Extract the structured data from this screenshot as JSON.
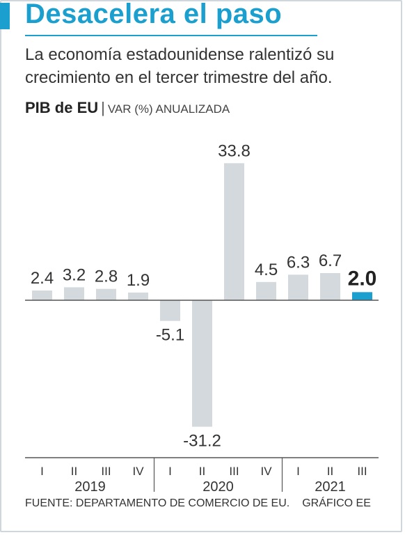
{
  "header": {
    "title": "Desacelera el paso",
    "subtitle": "La economía estadounidense ralentizó su crecimiento en el tercer trimestre del año.",
    "chart_title": "PIB de EU",
    "separator": "|",
    "chart_unit": "VAR (%) ANUALIZADA"
  },
  "footer": {
    "source": "FUENTE: DEPARTAMENTO DE COMERCIO DE EU.",
    "credit": "GRÁFICO EE"
  },
  "colors": {
    "accent": "#1a9fce",
    "bar": "#d3d9dc",
    "highlight": "#1a9fce",
    "text": "#333333"
  },
  "chart_data": {
    "type": "bar",
    "title": "PIB de EU",
    "ylabel": "VAR (%) ANUALIZADA",
    "categories": [
      "I",
      "II",
      "III",
      "IV",
      "I",
      "II",
      "III",
      "IV",
      "I",
      "II",
      "III"
    ],
    "years": [
      {
        "label": "2019",
        "quarters": 4
      },
      {
        "label": "2020",
        "quarters": 4
      },
      {
        "label": "2021",
        "quarters": 3
      }
    ],
    "values": [
      2.4,
      3.2,
      2.8,
      1.9,
      -5.1,
      -31.2,
      33.8,
      4.5,
      6.3,
      6.7,
      2.0
    ],
    "data_labels": [
      "2.4",
      "3.2",
      "2.8",
      "1.9",
      "-5.1",
      "-31.2",
      "33.8",
      "4.5",
      "6.3",
      "6.7",
      "2.0"
    ],
    "highlight_index": 10,
    "ylim": [
      -31.2,
      33.8
    ],
    "grid": false,
    "legend": "none"
  }
}
